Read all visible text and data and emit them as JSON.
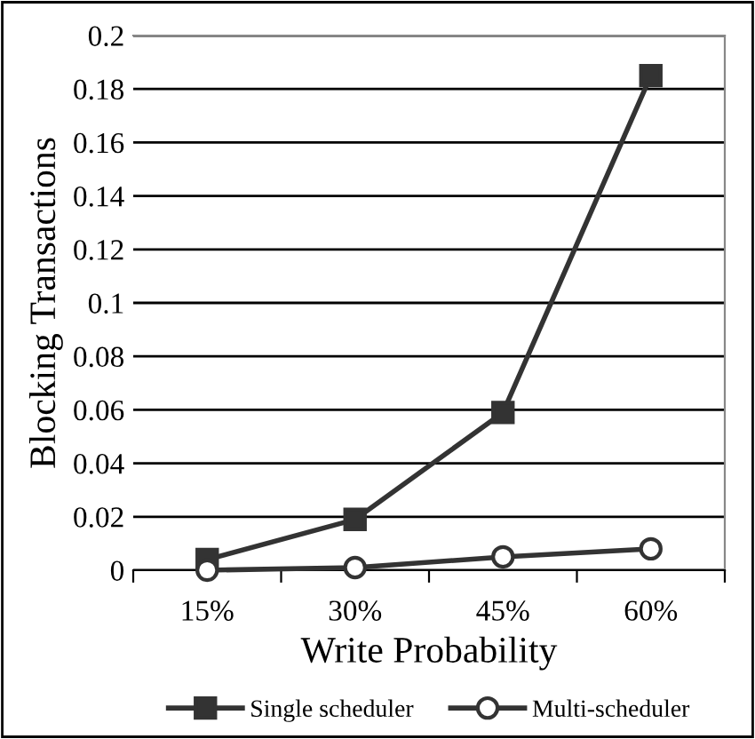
{
  "chart_data": {
    "type": "line",
    "xlabel": "Write Probability",
    "ylabel": "Blocking Transactions",
    "categories": [
      "15%",
      "30%",
      "45%",
      "60%"
    ],
    "series": [
      {
        "name": "Single scheduler",
        "color": "#333333",
        "values": [
          0.004,
          0.019,
          0.059,
          0.185
        ],
        "marker": "square"
      },
      {
        "name": "Multi-scheduler",
        "color": "#333333",
        "values": [
          0.0,
          0.001,
          0.005,
          0.008
        ],
        "marker": "circle"
      }
    ],
    "ylim": [
      0,
      0.2
    ],
    "yticks": [
      0,
      0.02,
      0.04,
      0.06,
      0.08,
      0.1,
      0.12,
      0.14,
      0.16,
      0.18,
      0.2
    ],
    "grid": "y",
    "legend": "bottom",
    "line_style": "solid"
  }
}
